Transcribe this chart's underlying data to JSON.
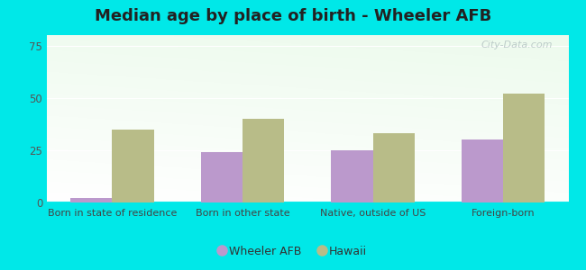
{
  "title": "Median age by place of birth - Wheeler AFB",
  "categories": [
    "Born in state of residence",
    "Born in other state",
    "Native, outside of US",
    "Foreign-born"
  ],
  "wheeler_afb": [
    2,
    24,
    25,
    30
  ],
  "hawaii": [
    35,
    40,
    33,
    52
  ],
  "wheeler_color": "#bb99cc",
  "hawaii_color": "#b8bc88",
  "ylim": [
    0,
    80
  ],
  "yticks": [
    0,
    25,
    50,
    75
  ],
  "background_color": "#00e8e8",
  "title_fontsize": 13,
  "legend_labels": [
    "Wheeler AFB",
    "Hawaii"
  ],
  "bar_width": 0.32,
  "watermark": "City-Data.com"
}
